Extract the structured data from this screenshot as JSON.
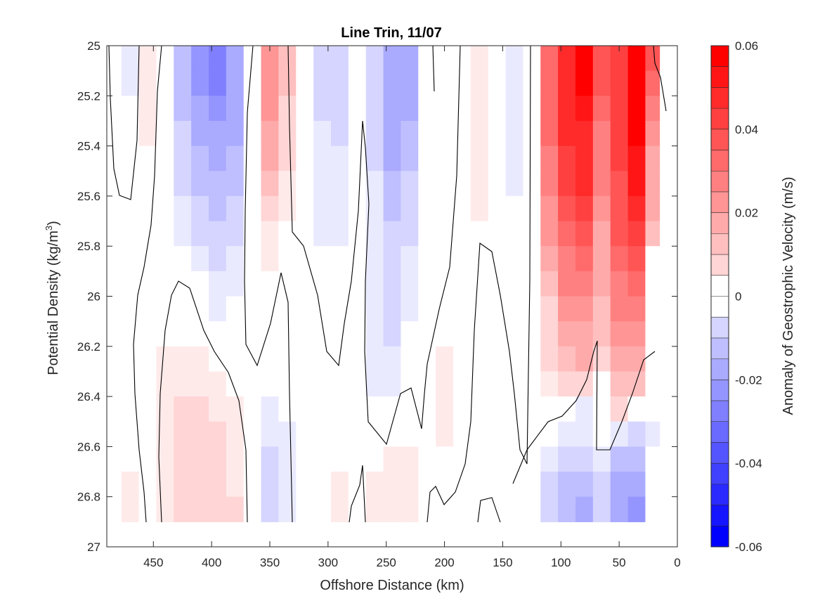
{
  "chart_data": {
    "type": "heatmap",
    "title": "Line Trin, 11/07",
    "xlabel": "Offshore Distance (km)",
    "ylabel": "Potential Density (kg/m",
    "ylabel_sup": "3",
    "ylabel_end": ")",
    "colorbar_label": "Anomaly of Geostrophic Velocity (m/s)",
    "xlim": [
      490,
      0
    ],
    "xaxis_reversed": true,
    "ylim": [
      25,
      27
    ],
    "yaxis_reversed": true,
    "x_ticks": [
      450,
      400,
      350,
      300,
      250,
      200,
      150,
      100,
      50,
      0
    ],
    "y_ticks": [
      25,
      25.2,
      25.4,
      25.6,
      25.8,
      26,
      26.2,
      26.4,
      26.6,
      26.8,
      27
    ],
    "colorbar_ticks": [
      0.06,
      0.04,
      0.02,
      0,
      -0.02,
      -0.04,
      -0.06
    ],
    "colorbar_range": [
      -0.06,
      0.06
    ],
    "colorbar_levels": 24,
    "colormap": {
      "negative": "#0000ff",
      "zero": "#ffffff",
      "positive": "#ff0000"
    },
    "data_extent_density": [
      25,
      26.9
    ],
    "grid": false,
    "legend": "colorbar-right",
    "cells_x": [
      "485",
      "470",
      "455",
      "440",
      "425",
      "410",
      "395",
      "380",
      "365",
      "350",
      "335",
      "320",
      "305",
      "290",
      "275",
      "260",
      "245",
      "230",
      "215",
      "200",
      "185",
      "170",
      "155",
      "140",
      "125",
      "110",
      "95",
      "80",
      "65",
      "50",
      "35",
      "20",
      "10"
    ],
    "cells_y": [
      25.05,
      25.15,
      25.25,
      25.35,
      25.45,
      25.55,
      25.65,
      25.75,
      25.85,
      25.95,
      26.05,
      26.15,
      26.25,
      26.35,
      26.45,
      26.55,
      26.65,
      26.75,
      26.85
    ],
    "values": [
      [
        0.0,
        -0.005,
        0.004,
        0.0,
        -0.015,
        -0.025,
        -0.028,
        -0.022,
        0.0,
        0.025,
        0.015,
        0.0,
        -0.008,
        -0.01,
        0.0,
        -0.01,
        -0.02,
        -0.018,
        0.0,
        0.0,
        0.0,
        0.005,
        0.0,
        -0.005,
        0.0,
        0.035,
        0.05,
        0.06,
        0.04,
        0.045,
        0.06,
        0.04,
        0.0
      ],
      [
        0.0,
        -0.005,
        0.004,
        0.0,
        -0.015,
        -0.025,
        -0.028,
        -0.022,
        0.0,
        0.025,
        0.015,
        0.0,
        -0.008,
        -0.01,
        0.0,
        -0.01,
        -0.02,
        -0.018,
        0.0,
        0.0,
        0.0,
        0.005,
        0.0,
        -0.005,
        0.0,
        0.035,
        0.05,
        0.058,
        0.04,
        0.045,
        0.06,
        0.035,
        0.0
      ],
      [
        0.0,
        0.0,
        0.003,
        0.0,
        -0.014,
        -0.022,
        -0.025,
        -0.02,
        0.0,
        0.024,
        0.012,
        0.0,
        -0.008,
        -0.01,
        0.0,
        -0.01,
        -0.02,
        -0.018,
        0.0,
        0.0,
        0.0,
        0.005,
        0.0,
        -0.005,
        0.0,
        0.035,
        0.05,
        0.055,
        0.035,
        0.045,
        0.06,
        0.03,
        0.0
      ],
      [
        0.0,
        0.0,
        0.003,
        0.0,
        -0.012,
        -0.02,
        -0.022,
        -0.018,
        0.0,
        0.022,
        0.01,
        0.0,
        -0.007,
        -0.008,
        0.0,
        -0.01,
        -0.02,
        -0.016,
        0.0,
        0.0,
        0.0,
        0.005,
        0.0,
        -0.004,
        0.0,
        0.035,
        0.048,
        0.052,
        0.032,
        0.045,
        0.058,
        0.025,
        0.0
      ],
      [
        0.0,
        0.0,
        0.0,
        0.0,
        -0.01,
        -0.017,
        -0.02,
        -0.016,
        0.0,
        0.018,
        0.008,
        0.0,
        -0.006,
        -0.007,
        0.0,
        -0.008,
        -0.018,
        -0.014,
        0.0,
        0.0,
        0.0,
        0.004,
        0.0,
        -0.004,
        0.0,
        0.032,
        0.046,
        0.05,
        0.03,
        0.045,
        0.056,
        0.022,
        0.0
      ],
      [
        0.0,
        0.0,
        0.0,
        0.0,
        -0.008,
        -0.014,
        -0.017,
        -0.013,
        0.0,
        0.015,
        0.005,
        0.0,
        -0.005,
        -0.006,
        0.0,
        -0.007,
        -0.015,
        -0.012,
        0.0,
        0.0,
        0.0,
        0.004,
        0.0,
        -0.003,
        0.0,
        0.03,
        0.044,
        0.048,
        0.028,
        0.042,
        0.054,
        0.02,
        0.0
      ],
      [
        0.0,
        0.0,
        0.0,
        0.0,
        -0.006,
        -0.01,
        -0.014,
        -0.01,
        0.0,
        0.01,
        0.003,
        0.0,
        -0.004,
        -0.005,
        0.0,
        -0.006,
        -0.013,
        -0.01,
        0.0,
        0.0,
        0.0,
        0.003,
        0.0,
        0.0,
        0.0,
        0.027,
        0.04,
        0.045,
        0.025,
        0.04,
        0.05,
        0.018,
        0.0
      ],
      [
        0.0,
        0.0,
        0.0,
        0.0,
        -0.004,
        -0.008,
        -0.012,
        -0.008,
        0.0,
        0.006,
        0.0,
        0.0,
        -0.003,
        -0.004,
        0.0,
        -0.005,
        -0.011,
        -0.008,
        0.0,
        0.0,
        0.0,
        0.002,
        0.0,
        0.0,
        0.0,
        0.024,
        0.036,
        0.04,
        0.022,
        0.038,
        0.045,
        0.015,
        0.0
      ],
      [
        0.0,
        0.0,
        0.0,
        0.0,
        0.0,
        -0.005,
        -0.01,
        -0.006,
        0.0,
        0.004,
        0.0,
        0.0,
        0.0,
        0.0,
        0.0,
        -0.004,
        -0.009,
        -0.006,
        0.0,
        0.0,
        0.0,
        0.0,
        0.0,
        0.0,
        0.0,
        0.02,
        0.032,
        0.035,
        0.02,
        0.035,
        0.04,
        0.0,
        0.0
      ],
      [
        0.0,
        0.0,
        0.0,
        0.0,
        0.0,
        0.0,
        -0.006,
        -0.004,
        0.0,
        0.0,
        0.0,
        0.0,
        0.0,
        0.0,
        0.0,
        -0.004,
        -0.008,
        -0.005,
        0.0,
        0.0,
        0.0,
        0.0,
        0.0,
        0.0,
        0.0,
        0.016,
        0.028,
        0.03,
        0.018,
        0.032,
        0.034,
        0.0,
        0.0
      ],
      [
        0.0,
        0.0,
        0.0,
        0.0,
        0.0,
        0.0,
        -0.004,
        0.0,
        0.0,
        0.0,
        0.0,
        0.0,
        0.0,
        0.0,
        0.0,
        -0.004,
        -0.008,
        -0.004,
        0.0,
        0.0,
        0.0,
        0.0,
        0.0,
        0.0,
        0.0,
        0.012,
        0.024,
        0.026,
        0.016,
        0.03,
        0.03,
        0.0,
        0.0
      ],
      [
        0.0,
        0.0,
        0.0,
        0.0,
        0.0,
        0.0,
        0.0,
        0.0,
        0.0,
        0.0,
        0.0,
        0.0,
        0.0,
        0.0,
        0.0,
        -0.005,
        -0.008,
        0.0,
        0.0,
        0.0,
        0.0,
        0.0,
        0.0,
        0.0,
        0.0,
        0.01,
        0.02,
        0.022,
        0.014,
        0.026,
        0.026,
        0.0,
        0.0
      ],
      [
        0.0,
        0.0,
        0.0,
        0.003,
        0.004,
        0.004,
        0.0,
        0.0,
        0.0,
        0.0,
        0.0,
        0.0,
        0.0,
        0.0,
        0.0,
        -0.005,
        -0.007,
        0.0,
        0.0,
        0.003,
        0.0,
        0.0,
        0.0,
        0.0,
        0.0,
        0.008,
        0.016,
        0.018,
        0.012,
        0.022,
        0.022,
        0.0,
        0.0
      ],
      [
        0.0,
        0.0,
        0.0,
        0.004,
        0.007,
        0.007,
        0.005,
        0.0,
        0.0,
        0.0,
        0.0,
        0.0,
        0.0,
        0.0,
        0.0,
        -0.004,
        -0.004,
        0.0,
        0.0,
        0.004,
        0.0,
        0.0,
        0.0,
        0.0,
        0.0,
        0.005,
        0.01,
        0.012,
        0.0,
        0.016,
        0.016,
        0.0,
        0.0
      ],
      [
        0.0,
        0.0,
        0.0,
        0.005,
        0.008,
        0.008,
        0.007,
        0.004,
        0.0,
        -0.004,
        0.0,
        0.0,
        0.0,
        0.0,
        0.0,
        0.0,
        0.0,
        0.0,
        0.0,
        0.004,
        0.0,
        0.0,
        0.0,
        0.0,
        0.0,
        0.0,
        0.0,
        -0.004,
        0.0,
        0.008,
        0.0,
        0.0,
        0.0
      ],
      [
        0.0,
        0.0,
        0.0,
        0.005,
        0.008,
        0.008,
        0.008,
        0.005,
        0.0,
        -0.006,
        -0.004,
        0.0,
        0.0,
        0.0,
        0.0,
        0.0,
        0.0,
        0.0,
        0.0,
        0.004,
        0.0,
        0.0,
        0.0,
        0.0,
        0.0,
        0.0,
        -0.004,
        -0.006,
        0.0,
        -0.006,
        -0.01,
        -0.004,
        0.0
      ],
      [
        0.0,
        0.0,
        0.0,
        0.005,
        0.009,
        0.01,
        0.009,
        0.006,
        0.0,
        -0.008,
        -0.005,
        0.0,
        0.0,
        0.0,
        0.0,
        0.0,
        0.004,
        0.004,
        0.0,
        0.0,
        0.0,
        0.0,
        0.0,
        0.0,
        0.0,
        -0.006,
        -0.01,
        -0.012,
        -0.006,
        -0.014,
        -0.014,
        0.0,
        0.0
      ],
      [
        0.0,
        0.003,
        0.0,
        0.005,
        0.01,
        0.011,
        0.01,
        0.007,
        0.0,
        -0.01,
        -0.006,
        0.0,
        0.0,
        0.003,
        0.0,
        0.003,
        0.006,
        0.006,
        0.0,
        0.0,
        0.0,
        0.0,
        0.0,
        0.0,
        0.0,
        -0.01,
        -0.014,
        -0.016,
        -0.01,
        -0.018,
        -0.02,
        0.0,
        0.0
      ],
      [
        0.0,
        0.004,
        0.0,
        0.006,
        0.01,
        0.012,
        0.012,
        0.008,
        0.0,
        -0.012,
        -0.007,
        0.0,
        0.0,
        0.004,
        0.0,
        0.004,
        0.006,
        0.005,
        0.0,
        0.0,
        0.0,
        0.0,
        0.0,
        0.0,
        0.0,
        -0.012,
        -0.016,
        -0.018,
        -0.012,
        -0.022,
        -0.024,
        0.0,
        0.0
      ]
    ]
  }
}
